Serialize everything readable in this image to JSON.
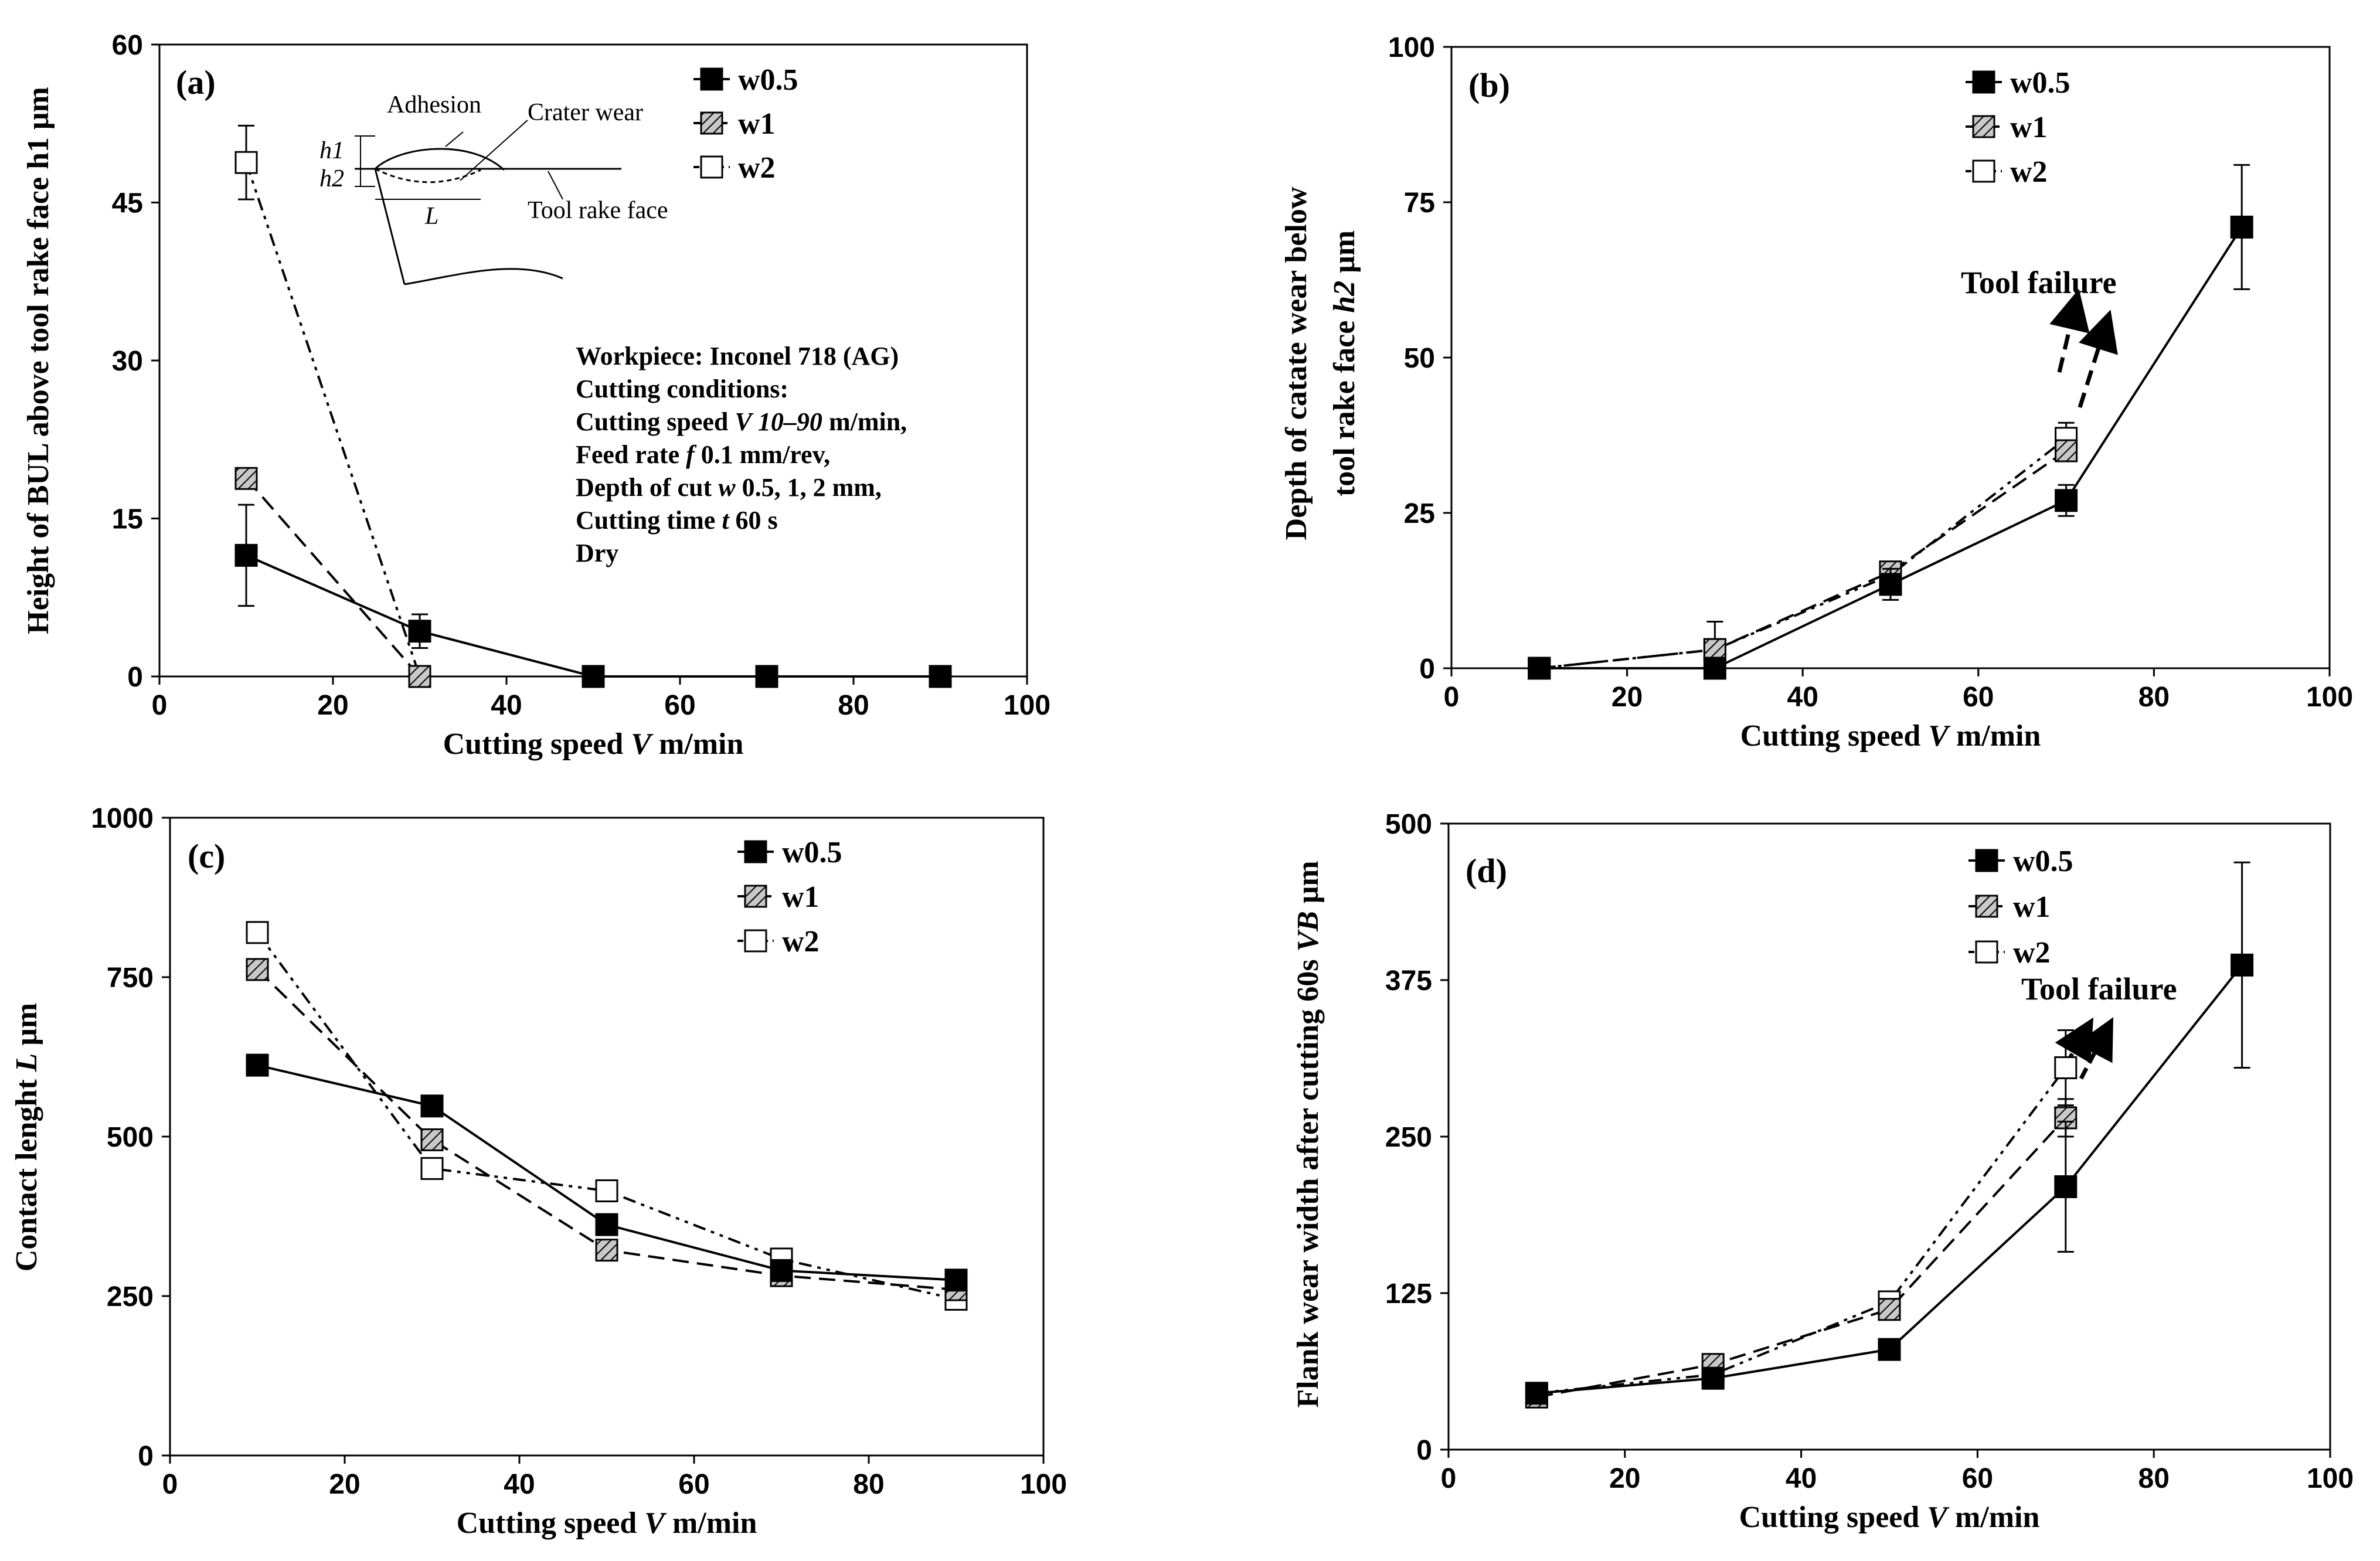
{
  "colors": {
    "ink": "#000000",
    "background": "#ffffff",
    "hatch_fill": "#c8c8c8"
  },
  "series_meta": [
    {
      "name": "w0.5",
      "marker": "filled-square",
      "line": "solid"
    },
    {
      "name": "w1",
      "marker": "hatched-square",
      "line": "dashed"
    },
    {
      "name": "w2",
      "marker": "open-square",
      "line": "dash-dot-dot"
    }
  ],
  "chart_data": [
    {
      "id": "a",
      "panel_label": "(a)",
      "type": "line",
      "xlabel": "Cutting speed V m/min",
      "xlabel_parts": [
        "Cutting speed ",
        "V",
        " m/min"
      ],
      "ylabel": "Height of BUL above tool rake face h1 μm",
      "ylabel_parts": [
        "Height of BUL above tool rake face h1 μm"
      ],
      "xlim": [
        0,
        100
      ],
      "ylim": [
        0,
        60
      ],
      "xticks": [
        0,
        20,
        40,
        60,
        80,
        100
      ],
      "yticks": [
        0,
        15,
        30,
        45,
        60
      ],
      "series": [
        {
          "name": "w0.5",
          "x": [
            10,
            30,
            50,
            70,
            90
          ],
          "y": [
            11.5,
            4.3,
            0,
            0,
            0
          ],
          "err": [
            4.8,
            1.6,
            0,
            0,
            0
          ]
        },
        {
          "name": "w1",
          "x": [
            10,
            30
          ],
          "y": [
            18.8,
            0
          ],
          "err": [
            0,
            0
          ]
        },
        {
          "name": "w2",
          "x": [
            10,
            30
          ],
          "y": [
            48.8,
            0
          ],
          "err": [
            3.5,
            0
          ]
        }
      ],
      "legend": [
        "w0.5",
        "w1",
        "w2"
      ],
      "annotation_lines": [
        [
          [
            "Workpiece: Inconel 718 (AG)",
            false
          ]
        ],
        [
          [
            "Cutting conditions:",
            false
          ]
        ],
        [
          [
            "Cutting speed ",
            false
          ],
          [
            "V 10–90",
            true
          ],
          [
            " m/min,",
            false
          ]
        ],
        [
          [
            "Feed rate ",
            false
          ],
          [
            "f",
            true
          ],
          [
            " 0.1 mm/rev,",
            false
          ]
        ],
        [
          [
            "Depth of cut ",
            false
          ],
          [
            "w",
            true
          ],
          [
            " 0.5, 1, 2 mm,",
            false
          ]
        ],
        [
          [
            "Cutting time ",
            false
          ],
          [
            "t",
            true
          ],
          [
            " 60 s",
            false
          ]
        ],
        [
          [
            "Dry",
            false
          ]
        ]
      ],
      "inset": {
        "adhesion": "Adhesion",
        "crater": "Crater wear",
        "rake": "Tool rake face",
        "h1": "h1",
        "h2": "h2",
        "L": "L"
      }
    },
    {
      "id": "b",
      "panel_label": "(b)",
      "type": "line",
      "xlabel": "Cutting speed V m/min",
      "xlabel_parts": [
        "Cutting speed ",
        "V",
        " m/min"
      ],
      "ylabel": "Depth of catate wear below tool rake face h2 μm",
      "ylabel_parts": [
        "Depth of catate wear below",
        "tool rake face ",
        "h2",
        " μm"
      ],
      "xlim": [
        0,
        100
      ],
      "ylim": [
        0,
        100
      ],
      "xticks": [
        0,
        20,
        40,
        60,
        80,
        100
      ],
      "yticks": [
        0,
        25,
        50,
        75,
        100
      ],
      "series": [
        {
          "name": "w0.5",
          "x": [
            10,
            30,
            50,
            70,
            90
          ],
          "y": [
            0,
            0,
            13.5,
            27,
            71
          ],
          "err": [
            0,
            0,
            2.5,
            2.5,
            10
          ]
        },
        {
          "name": "w1",
          "x": [
            10,
            30,
            50,
            70
          ],
          "y": [
            0,
            3,
            15.5,
            35
          ],
          "err": [
            0,
            0,
            0,
            0
          ]
        },
        {
          "name": "w2",
          "x": [
            10,
            30,
            50,
            70
          ],
          "y": [
            0,
            3,
            15,
            37
          ],
          "err": [
            0,
            4.5,
            0,
            2.5
          ]
        }
      ],
      "legend": [
        "w0.5",
        "w1",
        "w2"
      ],
      "failure_label": "Tool failure"
    },
    {
      "id": "c",
      "panel_label": "(c)",
      "type": "line",
      "xlabel": "Cutting speed V m/min",
      "xlabel_parts": [
        "Cutting speed ",
        "V",
        " m/min"
      ],
      "ylabel": "Contact lenght L μm",
      "ylabel_parts": [
        "Contact lenght ",
        "L",
        " μm"
      ],
      "xlim": [
        0,
        100
      ],
      "ylim": [
        0,
        1000
      ],
      "xticks": [
        0,
        20,
        40,
        60,
        80,
        100
      ],
      "yticks": [
        0,
        250,
        500,
        750,
        1000
      ],
      "series": [
        {
          "name": "w0.5",
          "x": [
            10,
            30,
            50,
            70,
            90
          ],
          "y": [
            612,
            548,
            362,
            290,
            275
          ],
          "err": [
            0,
            0,
            0,
            0,
            0
          ]
        },
        {
          "name": "w1",
          "x": [
            10,
            30,
            50,
            70,
            90
          ],
          "y": [
            762,
            495,
            322,
            282,
            260
          ],
          "err": [
            0,
            0,
            0,
            0,
            0
          ]
        },
        {
          "name": "w2",
          "x": [
            10,
            30,
            50,
            70,
            90
          ],
          "y": [
            820,
            450,
            415,
            308,
            245
          ],
          "err": [
            0,
            0,
            0,
            0,
            0
          ]
        }
      ],
      "legend": [
        "w0.5",
        "w1",
        "w2"
      ]
    },
    {
      "id": "d",
      "panel_label": "(d)",
      "type": "line",
      "xlabel": "Cutting speed V m/min",
      "xlabel_parts": [
        "Cutting speed ",
        "V",
        " m/min"
      ],
      "ylabel": "Flank wear width after cutting 60s VB μm",
      "ylabel_parts": [
        "Flank wear width after cutting 60s ",
        "VB",
        " μm"
      ],
      "xlim": [
        0,
        100
      ],
      "ylim": [
        0,
        500
      ],
      "xticks": [
        0,
        20,
        40,
        60,
        80,
        100
      ],
      "yticks": [
        0,
        125,
        250,
        375,
        500
      ],
      "series": [
        {
          "name": "w0.5",
          "x": [
            10,
            30,
            50,
            70,
            90
          ],
          "y": [
            45,
            57,
            80,
            210,
            387
          ],
          "err": [
            0,
            0,
            0,
            52,
            82
          ]
        },
        {
          "name": "w1",
          "x": [
            10,
            30,
            50,
            70
          ],
          "y": [
            42,
            68,
            112,
            265
          ],
          "err": [
            0,
            0,
            0,
            15
          ]
        },
        {
          "name": "w2",
          "x": [
            10,
            30,
            50,
            70
          ],
          "y": [
            45,
            60,
            118,
            305
          ],
          "err": [
            0,
            0,
            0,
            30
          ]
        }
      ],
      "legend": [
        "w0.5",
        "w1",
        "w2"
      ],
      "failure_label": "Tool failure"
    }
  ]
}
